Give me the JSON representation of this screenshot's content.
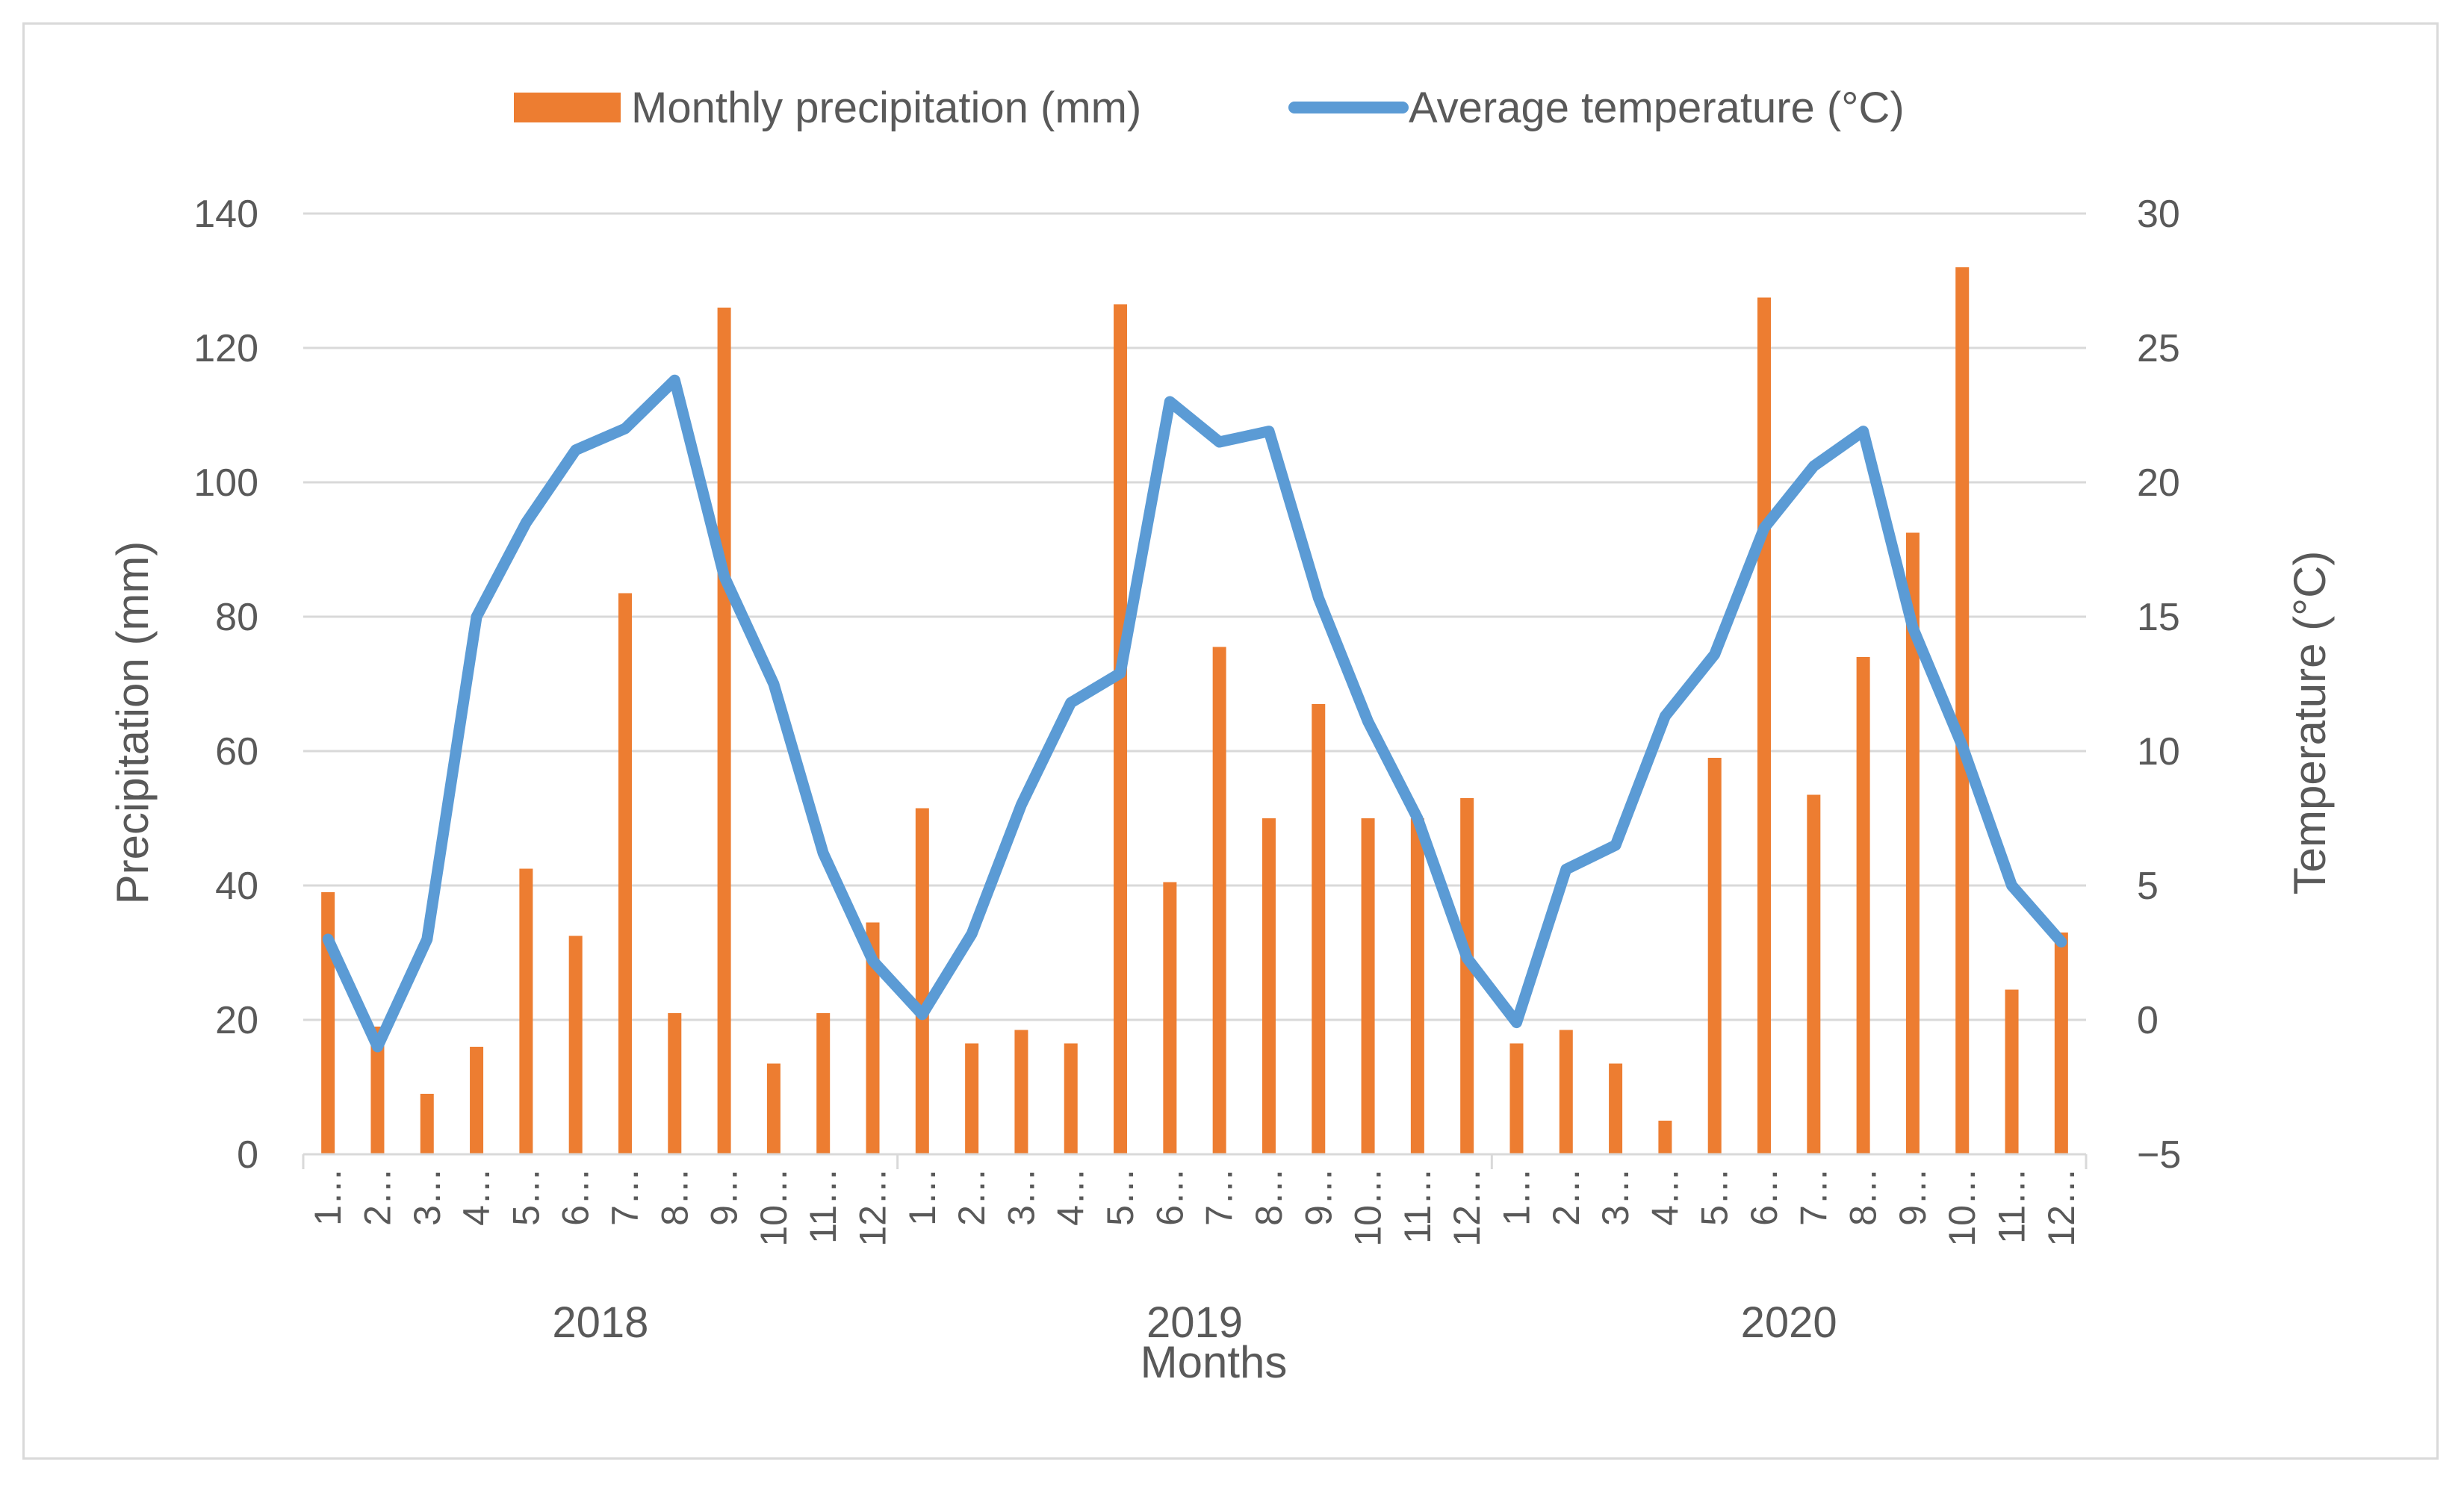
{
  "chart_data": {
    "type": "bar",
    "title": "",
    "xlabel": "Months",
    "ylabel": "Precipitation (mm)",
    "y2label": "Temperature (°C)",
    "ylim": [
      0,
      140
    ],
    "y2lim": [
      -5,
      30
    ],
    "yticks": [
      "0",
      "20",
      "40",
      "60",
      "80",
      "100",
      "120",
      "140"
    ],
    "y2ticks": [
      "−5",
      "0",
      "5",
      "10",
      "15",
      "20",
      "25",
      "30"
    ],
    "grid": true,
    "legend_position": "top",
    "colors": {
      "precipitation": "#ed7d31",
      "temperature": "#5b9bd5",
      "grid": "#d9d9d9",
      "text": "#595959"
    },
    "groups": [
      {
        "year": "2018",
        "month_labels": [
          "1…",
          "2…",
          "3…",
          "4…",
          "5…",
          "6…",
          "7…",
          "8…",
          "9…",
          "10…",
          "11…",
          "12…"
        ]
      },
      {
        "year": "2019",
        "month_labels": [
          "1…",
          "2…",
          "3…",
          "4…",
          "5…",
          "6…",
          "7…",
          "8…",
          "9…",
          "10…",
          "11…",
          "12…"
        ]
      },
      {
        "year": "2020",
        "month_labels": [
          "1…",
          "2…",
          "3…",
          "4…",
          "5…",
          "6…",
          "7…",
          "8…",
          "9…",
          "10…",
          "11…",
          "12…"
        ]
      }
    ],
    "series": [
      {
        "name": "Monthly precipitation (mm)",
        "type": "bar",
        "axis": "left",
        "values": [
          39,
          19,
          9,
          16,
          42.5,
          32.5,
          83.5,
          21,
          126,
          13.5,
          21,
          34.5,
          51.5,
          16.5,
          18.5,
          16.5,
          126.5,
          40.5,
          75.5,
          50,
          67,
          50,
          50,
          53,
          16.5,
          18.5,
          13.5,
          5,
          59,
          127.5,
          53.5,
          74,
          92.5,
          132,
          24.5,
          33
        ]
      },
      {
        "name": "Average temperature (°C)",
        "type": "line",
        "axis": "right",
        "values": [
          3,
          -1,
          3,
          15,
          18.5,
          21.2,
          22,
          23.8,
          16.5,
          12.5,
          6.2,
          2.2,
          0.2,
          3.2,
          8,
          11.8,
          12.9,
          23,
          21.5,
          21.9,
          15.7,
          11.1,
          7.5,
          2.3,
          -0.1,
          5.6,
          6.5,
          11.3,
          13.6,
          18.3,
          20.6,
          21.9,
          14.6,
          10.2,
          5,
          2.9
        ]
      }
    ]
  }
}
